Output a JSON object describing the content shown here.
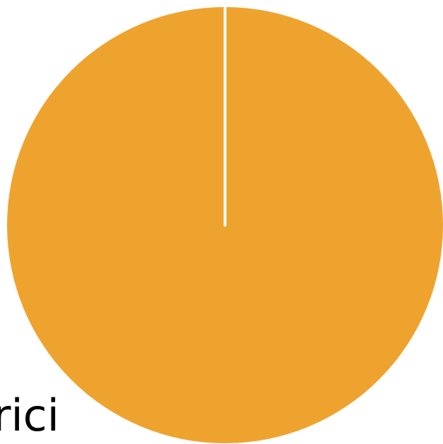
{
  "chart_data": {
    "type": "pie",
    "slices": [
      {
        "label": "rici",
        "value": 100,
        "color": "#efa32f"
      }
    ],
    "separator_color": "#ffffff"
  }
}
